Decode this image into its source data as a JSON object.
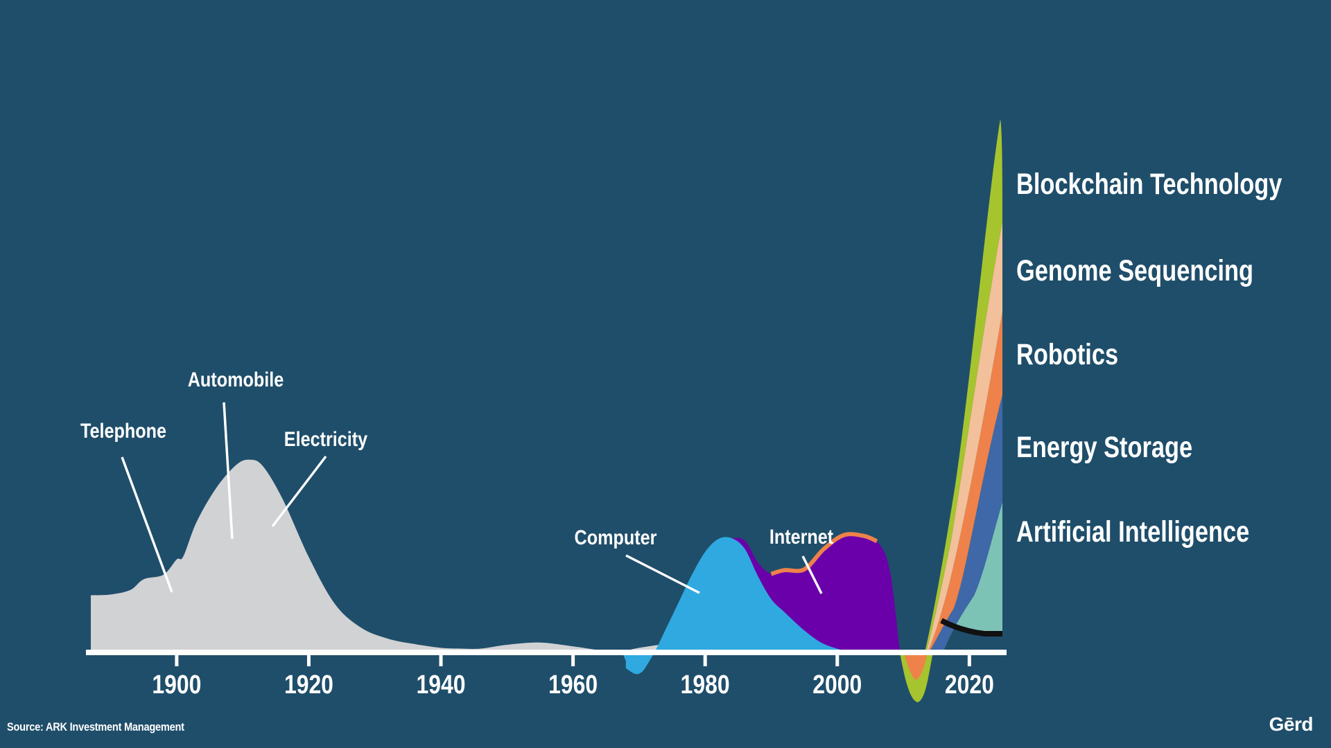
{
  "source": "Source: ARK Investment Management",
  "brand": "Gērd",
  "colors": {
    "background": "#1f4e6a",
    "axis": "#ffffff",
    "text": "#ffffff"
  },
  "chart_data": {
    "type": "area",
    "title": "",
    "xlabel": "",
    "ylabel": "",
    "xlim": [
      1887,
      2025
    ],
    "x_ticks": [
      "1900",
      "1920",
      "1940",
      "1960",
      "1980",
      "2000",
      "2020"
    ],
    "grid": false,
    "legend": "right",
    "series": [
      {
        "id": "telephone",
        "name": "Telephone",
        "color": "#d1d2d4",
        "x": [
          1887,
          1890,
          1893,
          1895,
          1898,
          1900,
          1901,
          1903,
          1906,
          1909,
          1911,
          1913,
          1916,
          1920,
          1924,
          1928,
          1932,
          1936,
          1940,
          1943,
          1946,
          1950,
          1955,
          1960,
          1964,
          1967,
          1970,
          1974,
          1978,
          1982,
          1986,
          1990,
          1994,
          1996
        ],
        "values": [
          7.5,
          7.6,
          8.2,
          9.6,
          10.2,
          12.2,
          12.6,
          17.1,
          21.6,
          24.6,
          25.3,
          24.5,
          20.2,
          12.5,
          6.3,
          3.2,
          1.8,
          1.1,
          0.6,
          0.5,
          0.5,
          1.0,
          1.3,
          0.8,
          0.3,
          0.1,
          0.6,
          1.1,
          1.4,
          1.4,
          1.0,
          0.6,
          0.2,
          0
        ]
      },
      {
        "id": "computer",
        "name": "Computer",
        "color": "#2fa9e0",
        "x": [
          1968,
          1970,
          1972,
          1974,
          1976,
          1978,
          1980,
          1982,
          1984,
          1986,
          1988,
          1990,
          1992,
          1995,
          1998,
          2002
        ],
        "values": [
          -2.1,
          -2.8,
          -0.5,
          3.0,
          6.6,
          10.2,
          13.2,
          14.9,
          15.0,
          13.6,
          10.0,
          7.0,
          5.3,
          2.9,
          1.1,
          0
        ]
      },
      {
        "id": "internet",
        "name": "Internet",
        "color": "#6a00aa",
        "x": [
          1984,
          1986,
          1988,
          1990,
          1992,
          1995,
          1998,
          2001,
          2004,
          2006,
          2008,
          2010,
          2012
        ],
        "values": [
          15.0,
          14.7,
          11.8,
          10.3,
          10.8,
          10.9,
          13.6,
          15.4,
          15.3,
          14.6,
          10.6,
          -2.5,
          -2.8
        ]
      },
      {
        "id": "artificial-intelligence",
        "name": "Artificial Intelligence",
        "color": "#7cc3b6"
      },
      {
        "id": "energy-storage",
        "name": "Energy Storage",
        "color": "#3f68a8"
      },
      {
        "id": "robotics",
        "name": "Robotics",
        "color": "#ee824a"
      },
      {
        "id": "genome-sequencing",
        "name": "Genome Sequencing",
        "color": "#f2c09a"
      },
      {
        "id": "blockchain-technology",
        "name": "Blockchain Technology",
        "color": "#a6c42e"
      }
    ],
    "annotations": [
      {
        "id": "telephone",
        "text": "Telephone"
      },
      {
        "id": "automobile",
        "text": "Automobile"
      },
      {
        "id": "electricity",
        "text": "Electricity"
      },
      {
        "id": "computer",
        "text": "Computer"
      },
      {
        "id": "internet",
        "text": "Internet"
      }
    ],
    "legend_labels": [
      "Blockchain Technology",
      "Genome Sequencing",
      "Robotics",
      "Energy Storage",
      "Artificial Intelligence"
    ]
  }
}
